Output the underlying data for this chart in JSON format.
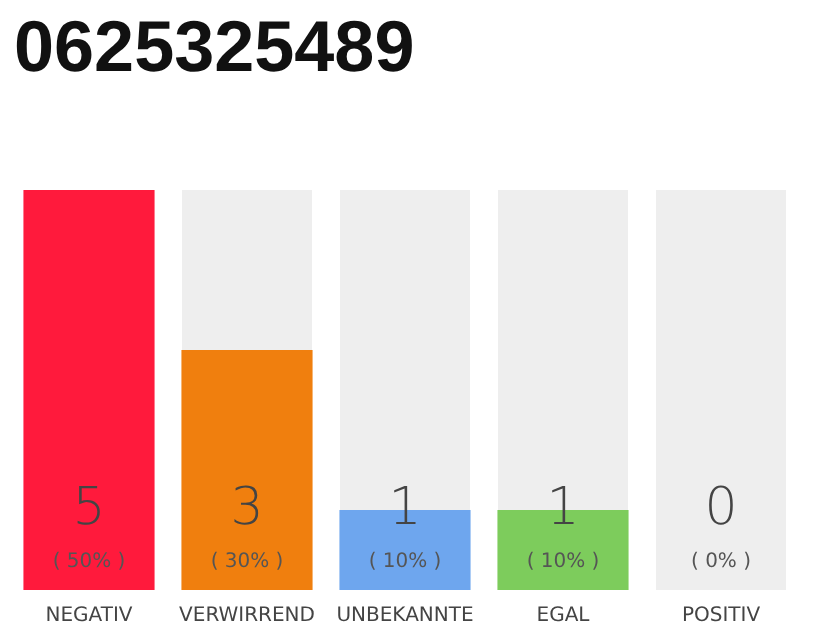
{
  "chart_data": {
    "type": "bar",
    "title": "0625325489",
    "categories": [
      "NEGATIV",
      "VERWIRREND",
      "UNBEKANNTE",
      "EGAL",
      "POSITIV"
    ],
    "values": [
      5,
      3,
      1,
      1,
      0
    ],
    "colors": [
      "#ff1a3c",
      "#f07f0e",
      "#6ea6ee",
      "#7dcc5c",
      "#7dcc5c"
    ],
    "data_labels": true,
    "annotations": [
      "( 50% )",
      "( 30% )",
      "( 10% )",
      "( 10% )",
      "( 0% )"
    ]
  }
}
